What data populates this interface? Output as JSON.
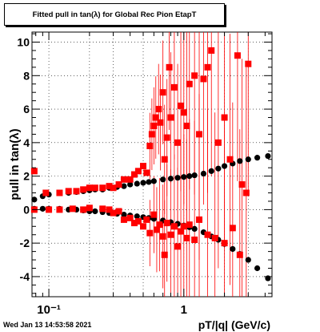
{
  "chart_data": {
    "type": "scatter",
    "title": "Fitted pull in tan(λ) for Global Rec Pion EtapT",
    "xlabel": "pT/|q| (GeV/c)",
    "ylabel": "pull in tan(λ)",
    "xscale": "log",
    "xlim": [
      0.075,
      4.5
    ],
    "ylim": [
      -5.2,
      10.6
    ],
    "x_ticks": [
      {
        "value": 0.1,
        "label": "10⁻¹"
      },
      {
        "value": 1,
        "label": "1"
      }
    ],
    "y_ticks": [
      -4,
      -2,
      0,
      2,
      4,
      6,
      8,
      10
    ],
    "grid": true,
    "series": [
      {
        "marker": "circle",
        "color": "#000000",
        "points": [
          [
            0.078,
            0.6
          ],
          [
            0.09,
            0.8
          ],
          [
            0.1,
            0.9
          ],
          [
            0.12,
            1.0
          ],
          [
            0.14,
            1.0
          ],
          [
            0.16,
            1.05
          ],
          [
            0.18,
            1.1
          ],
          [
            0.2,
            1.15
          ],
          [
            0.22,
            1.2
          ],
          [
            0.25,
            1.2
          ],
          [
            0.28,
            1.3
          ],
          [
            0.32,
            1.35
          ],
          [
            0.36,
            1.4
          ],
          [
            0.4,
            1.5
          ],
          [
            0.45,
            1.55
          ],
          [
            0.5,
            1.6
          ],
          [
            0.55,
            1.65
          ],
          [
            0.6,
            1.7
          ],
          [
            0.7,
            1.8
          ],
          [
            0.8,
            1.85
          ],
          [
            0.9,
            1.9
          ],
          [
            1.0,
            1.95
          ],
          [
            1.1,
            2.0
          ],
          [
            1.2,
            2.05
          ],
          [
            1.4,
            2.15
          ],
          [
            1.6,
            2.3
          ],
          [
            1.8,
            2.45
          ],
          [
            2.0,
            2.6
          ],
          [
            2.3,
            2.75
          ],
          [
            2.6,
            2.9
          ],
          [
            3.0,
            3.0
          ],
          [
            3.5,
            3.1
          ],
          [
            4.2,
            3.2
          ],
          [
            0.078,
            0.05
          ],
          [
            0.09,
            0.05
          ],
          [
            0.1,
            0.05
          ],
          [
            0.12,
            0.05
          ],
          [
            0.14,
            0.0
          ],
          [
            0.16,
            0.0
          ],
          [
            0.18,
            -0.05
          ],
          [
            0.2,
            -0.1
          ],
          [
            0.22,
            -0.1
          ],
          [
            0.25,
            -0.15
          ],
          [
            0.28,
            -0.2
          ],
          [
            0.32,
            -0.25
          ],
          [
            0.36,
            -0.3
          ],
          [
            0.4,
            -0.35
          ],
          [
            0.45,
            -0.4
          ],
          [
            0.5,
            -0.45
          ],
          [
            0.55,
            -0.5
          ],
          [
            0.6,
            -0.55
          ],
          [
            0.7,
            -0.65
          ],
          [
            0.8,
            -0.75
          ],
          [
            0.9,
            -0.85
          ],
          [
            1.0,
            -0.95
          ],
          [
            1.1,
            -1.05
          ],
          [
            1.2,
            -1.15
          ],
          [
            1.4,
            -1.35
          ],
          [
            1.6,
            -1.6
          ],
          [
            1.8,
            -1.8
          ],
          [
            2.0,
            -2.05
          ],
          [
            2.3,
            -2.35
          ],
          [
            2.6,
            -2.65
          ],
          [
            3.0,
            -3.0
          ],
          [
            3.5,
            -3.5
          ],
          [
            4.2,
            -4.1
          ]
        ]
      },
      {
        "marker": "square",
        "color": "#ff0000",
        "points": [
          [
            0.078,
            2.3
          ],
          [
            0.095,
            1.0
          ],
          [
            0.12,
            1.0
          ],
          [
            0.14,
            1.1
          ],
          [
            0.16,
            1.1
          ],
          [
            0.18,
            1.2
          ],
          [
            0.2,
            1.3
          ],
          [
            0.22,
            1.3
          ],
          [
            0.25,
            1.3
          ],
          [
            0.28,
            1.4
          ],
          [
            0.3,
            1.3
          ],
          [
            0.33,
            1.5
          ],
          [
            0.36,
            1.8
          ],
          [
            0.4,
            1.8
          ],
          [
            0.43,
            2.1
          ],
          [
            0.46,
            2.3
          ],
          [
            0.5,
            2.6
          ],
          [
            0.53,
            2.2
          ],
          [
            0.56,
            3.8
          ],
          [
            0.58,
            4.5
          ],
          [
            0.6,
            5.0
          ],
          [
            0.62,
            5.5
          ],
          [
            0.65,
            6.0
          ],
          [
            0.67,
            5.2
          ],
          [
            0.7,
            7.0
          ],
          [
            0.72,
            3.0
          ],
          [
            0.75,
            4.3
          ],
          [
            0.78,
            8.5
          ],
          [
            0.8,
            5.5
          ],
          [
            0.85,
            7.3
          ],
          [
            0.9,
            4.0
          ],
          [
            0.95,
            6.2
          ],
          [
            1.0,
            5.8
          ],
          [
            1.05,
            5.0
          ],
          [
            1.1,
            7.5
          ],
          [
            1.2,
            8.0
          ],
          [
            1.3,
            4.5
          ],
          [
            1.4,
            7.8
          ],
          [
            1.5,
            8.5
          ],
          [
            1.6,
            9.5
          ],
          [
            1.8,
            4.0
          ],
          [
            2.0,
            5.5
          ],
          [
            2.2,
            3.0
          ],
          [
            2.5,
            9.2
          ],
          [
            2.7,
            1.5
          ],
          [
            2.9,
            1.0
          ],
          [
            3.0,
            8.7
          ],
          [
            0.078,
            -0.0
          ],
          [
            0.1,
            0.0
          ],
          [
            0.12,
            0.0
          ],
          [
            0.15,
            0.05
          ],
          [
            0.18,
            0.0
          ],
          [
            0.2,
            0.1
          ],
          [
            0.25,
            0.05
          ],
          [
            0.28,
            0.0
          ],
          [
            0.3,
            -0.2
          ],
          [
            0.33,
            -0.1
          ],
          [
            0.36,
            -0.6
          ],
          [
            0.4,
            -0.5
          ],
          [
            0.43,
            -0.8
          ],
          [
            0.46,
            -0.7
          ],
          [
            0.5,
            -1.0
          ],
          [
            0.53,
            -0.6
          ],
          [
            0.56,
            -1.4
          ],
          [
            0.6,
            -0.3
          ],
          [
            0.63,
            -1.2
          ],
          [
            0.66,
            -0.9
          ],
          [
            0.7,
            -1.6
          ],
          [
            0.72,
            -2.7
          ],
          [
            0.75,
            -0.8
          ],
          [
            0.8,
            -1.5
          ],
          [
            0.85,
            -1.0
          ],
          [
            0.9,
            -2.2
          ],
          [
            0.95,
            -1.3
          ],
          [
            1.0,
            -1.0
          ],
          [
            1.05,
            -1.7
          ],
          [
            1.1,
            -0.9
          ],
          [
            1.2,
            -1.8
          ],
          [
            1.3,
            -0.6
          ],
          [
            1.5,
            -1.5
          ],
          [
            1.7,
            -1.7
          ],
          [
            2.0,
            -2.0
          ],
          [
            2.3,
            -1.1
          ],
          [
            2.6,
            -2.7
          ]
        ]
      }
    ]
  },
  "footer": {
    "timestamp": "Wed Jan 13 14:53:58 2021"
  },
  "colors": {
    "series1": "#000000",
    "series2": "#ff0000",
    "frame": "#000000"
  }
}
